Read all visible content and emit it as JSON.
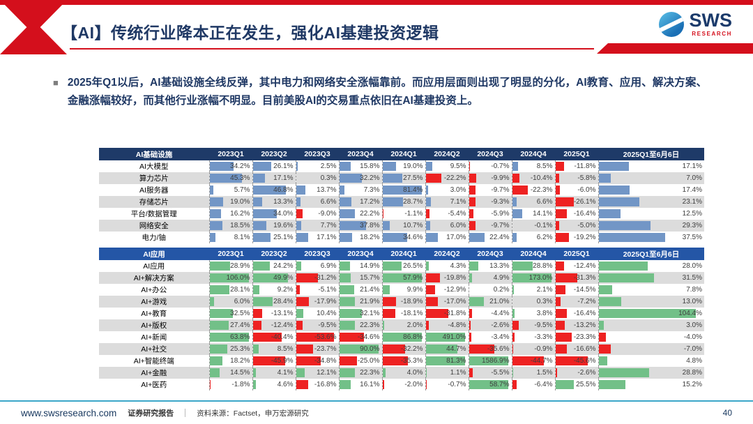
{
  "header": {
    "title": "【AI】传统行业降本正在发生，强化AI基建投资逻辑",
    "logo_text": "SWS",
    "logo_sub": "RESEARCH"
  },
  "bullet": {
    "marker": "■",
    "text": "2025年Q1以后，AI基础设施全线反弹，其中电力和网络安全涨幅靠前。而应用层面则出现了明显的分化，AI教育、应用、解决方案、金融涨幅较好，而其他行业涨幅不明显。目前美股AI的交易重点依旧在AI基建投资上。"
  },
  "colors": {
    "accent_red": "#d40f1c",
    "navy": "#1f3864",
    "table1_header_bg": "#1e3a68",
    "table2_header_bg": "#2456a6",
    "table1_positive_bar": "#7296c6",
    "table2_positive_bar": "#72c088",
    "negative_bar": "#ee2222",
    "stripe": "#dcdcdc"
  },
  "chart_data": [
    {
      "type": "table",
      "id": "ai-infrastructure",
      "title": "AI基础设施",
      "unit": "%",
      "columns": [
        "2023Q1",
        "2023Q2",
        "2023Q3",
        "2023Q4",
        "2024Q1",
        "2024Q2",
        "2024Q3",
        "2024Q4",
        "2025Q1",
        "2025Q1至6月6日"
      ],
      "rows": [
        {
          "name": "AI大模型",
          "values": [
            34.2,
            26.1,
            2.5,
            15.8,
            19.0,
            9.5,
            -0.7,
            8.5,
            -11.8,
            17.1
          ]
        },
        {
          "name": "算力芯片",
          "values": [
            45.3,
            17.1,
            0.3,
            32.2,
            27.5,
            -22.2,
            -9.9,
            -10.4,
            -5.8,
            7.0
          ]
        },
        {
          "name": "AI服务器",
          "values": [
            5.7,
            46.8,
            13.7,
            7.3,
            81.4,
            3.0,
            -9.7,
            -22.3,
            -6.0,
            17.4
          ]
        },
        {
          "name": "存储芯片",
          "values": [
            19.0,
            13.3,
            6.6,
            17.2,
            28.7,
            7.1,
            -9.3,
            6.6,
            -26.1,
            23.1
          ]
        },
        {
          "name": "平台/数据管理",
          "values": [
            16.2,
            34.0,
            -9.0,
            22.2,
            -1.1,
            -5.4,
            -5.9,
            14.1,
            -16.4,
            12.5
          ]
        },
        {
          "name": "网络安全",
          "values": [
            18.5,
            19.6,
            7.7,
            37.8,
            10.7,
            6.0,
            -9.7,
            -0.1,
            -5.0,
            29.3
          ]
        },
        {
          "name": "电力/铀",
          "values": [
            8.1,
            25.1,
            17.1,
            18.2,
            34.6,
            17.0,
            22.4,
            6.2,
            -19.2,
            37.5
          ]
        }
      ]
    },
    {
      "type": "table",
      "id": "ai-applications",
      "title": "AI应用",
      "unit": "%",
      "columns": [
        "2023Q1",
        "2023Q2",
        "2023Q3",
        "2023Q4",
        "2024Q1",
        "2024Q2",
        "2024Q3",
        "2024Q4",
        "2025Q1",
        "2025Q1至6月6日"
      ],
      "rows": [
        {
          "name": "AI应用",
          "values": [
            28.9,
            24.2,
            6.9,
            14.9,
            26.5,
            4.3,
            13.3,
            28.8,
            -12.4,
            28.0
          ]
        },
        {
          "name": "AI+解决方案",
          "values": [
            106.0,
            49.9,
            -31.2,
            15.7,
            57.9,
            -19.8,
            4.9,
            173.0,
            -31.3,
            31.5
          ]
        },
        {
          "name": "AI+办公",
          "values": [
            28.1,
            9.2,
            -5.1,
            21.4,
            9.9,
            -12.9,
            0.2,
            2.1,
            -14.5,
            7.8
          ]
        },
        {
          "name": "AI+游戏",
          "values": [
            6.0,
            28.4,
            -17.9,
            21.9,
            -18.9,
            -17.0,
            21.0,
            0.3,
            -7.2,
            13.0
          ]
        },
        {
          "name": "AI+教育",
          "values": [
            32.5,
            -13.1,
            10.4,
            32.1,
            -18.1,
            -31.8,
            -4.4,
            3.8,
            -16.4,
            104.4
          ]
        },
        {
          "name": "AI+版权",
          "values": [
            27.4,
            -12.4,
            -9.5,
            22.3,
            2.0,
            -4.8,
            -2.6,
            -9.5,
            -13.2,
            3.0
          ]
        },
        {
          "name": "AI+新闻",
          "values": [
            63.8,
            -40.4,
            -53.6,
            -34.6,
            86.8,
            491.0,
            -3.4,
            -3.3,
            -23.3,
            -4.0
          ]
        },
        {
          "name": "AI+社交",
          "values": [
            25.3,
            8.5,
            -23.7,
            90.0,
            -32.2,
            44.7,
            -35.6,
            -0.9,
            -16.6,
            -7.0
          ]
        },
        {
          "name": "AI+智能终端",
          "values": [
            18.2,
            -45.9,
            -34.8,
            -25.0,
            -35.3,
            81.3,
            1586.9,
            -44.7,
            -45.6,
            4.8
          ]
        },
        {
          "name": "AI+金融",
          "values": [
            14.5,
            4.1,
            12.1,
            22.3,
            4.0,
            1.1,
            -5.5,
            1.5,
            -2.6,
            28.8
          ]
        },
        {
          "name": "AI+医药",
          "values": [
            -1.8,
            4.6,
            -16.8,
            16.1,
            -2.0,
            -0.7,
            58.7,
            -6.4,
            25.5,
            15.2
          ]
        }
      ]
    }
  ],
  "footer": {
    "website": "www.swsresearch.com",
    "report_label": "证券研究报告",
    "source": "资料来源：Factset，申万宏源研究",
    "page": "40"
  }
}
